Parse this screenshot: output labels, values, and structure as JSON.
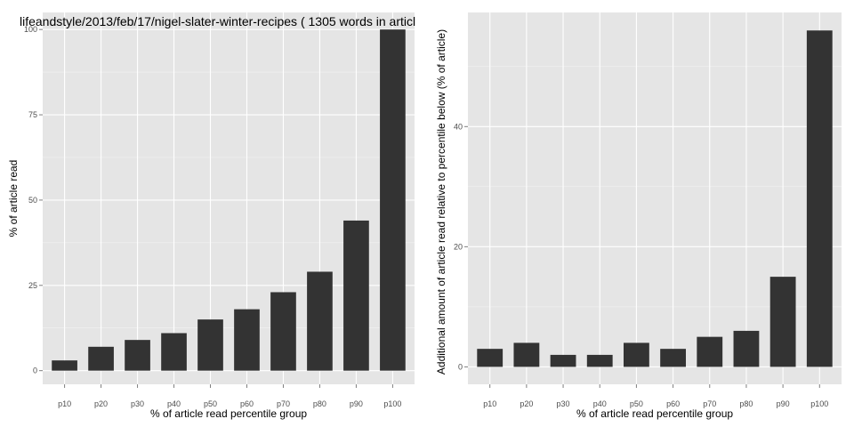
{
  "chart_data": [
    {
      "type": "bar",
      "title": "lifeandstyle/2013/feb/17/nigel-slater-winter-recipes ( 1305 words in articl",
      "xlabel": "% of article read percentile group",
      "ylabel": "% of article read",
      "categories": [
        "p10",
        "p20",
        "p30",
        "p40",
        "p50",
        "p60",
        "p70",
        "p80",
        "p90",
        "p100"
      ],
      "values": [
        3,
        7,
        9,
        11,
        15,
        18,
        23,
        29,
        44,
        100
      ],
      "ylim": [
        -4,
        105
      ],
      "yticks": [
        "0",
        "25",
        "50",
        "75",
        "100"
      ],
      "bar_color": "#333333",
      "panel_color": "#e5e5e5",
      "grid": true
    },
    {
      "type": "bar",
      "title": "",
      "xlabel": "% of article read percentile group",
      "ylabel": "Additional amount of article read relative to percentile below (% of article)",
      "categories": [
        "p10",
        "p20",
        "p30",
        "p40",
        "p50",
        "p60",
        "p70",
        "p80",
        "p90",
        "p100"
      ],
      "values": [
        3,
        4,
        2,
        2,
        4,
        3,
        5,
        6,
        15,
        56
      ],
      "ylim": [
        -2.9,
        59
      ],
      "yticks": [
        "0",
        "20",
        "40"
      ],
      "bar_color": "#333333",
      "panel_color": "#e5e5e5",
      "grid": true
    }
  ]
}
